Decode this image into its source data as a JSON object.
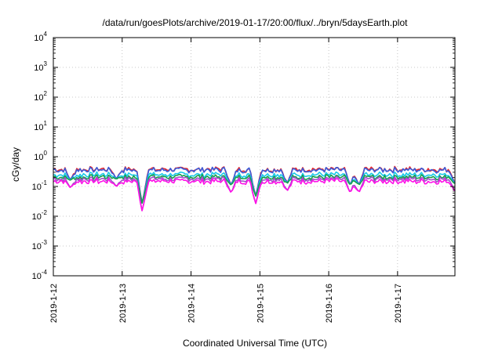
{
  "chart_data": {
    "type": "line",
    "title": "/data/run/goesPlots/archive/2019-01-17/20:00/flux/../bryn/5daysEarth.plot",
    "xlabel": "Coordinated Universal Time (UTC)",
    "ylabel": "cGy/day",
    "yscale": "log",
    "ylim": [
      0.0001,
      10000
    ],
    "xlim": [
      "2019-01-12",
      "2019-01-17 20:00"
    ],
    "x_ticks": [
      "2019-1-12",
      "2019-1-13",
      "2019-1-14",
      "2019-1-15",
      "2019-1-16",
      "2019-1-17"
    ],
    "y_ticks": [
      {
        "base": "10",
        "exp": "-4",
        "value": 0.0001
      },
      {
        "base": "10",
        "exp": "-3",
        "value": 0.001
      },
      {
        "base": "10",
        "exp": "-2",
        "value": 0.01
      },
      {
        "base": "10",
        "exp": "-1",
        "value": 0.1
      },
      {
        "base": "10",
        "exp": "0",
        "value": 1
      },
      {
        "base": "10",
        "exp": "1",
        "value": 10
      },
      {
        "base": "10",
        "exp": "2",
        "value": 100
      },
      {
        "base": "10",
        "exp": "3",
        "value": 1000
      },
      {
        "base": "10",
        "exp": "4",
        "value": 10000
      }
    ],
    "grid": true,
    "legend": "none",
    "series": [
      {
        "color": "#e4262d",
        "level": 0.38
      },
      {
        "color": "#3a5bd9",
        "level": 0.36
      },
      {
        "color": "#18c8e8",
        "level": 0.25
      },
      {
        "color": "#16a04a",
        "level": 0.21
      },
      {
        "color": "#a050c8",
        "level": 0.18
      },
      {
        "color": "#ff10e8",
        "level": 0.15
      }
    ],
    "dips": [
      {
        "date": "2019-01-12 06:00",
        "value": 0.09
      },
      {
        "date": "2019-01-12 22:00",
        "value": 0.1
      },
      {
        "date": "2019-01-13 07:00",
        "value": 0.014
      },
      {
        "date": "2019-01-14 14:00",
        "value": 0.06
      },
      {
        "date": "2019-01-14 22:30",
        "value": 0.025
      },
      {
        "date": "2019-01-15 09:30",
        "value": 0.07
      },
      {
        "date": "2019-01-16 07:30",
        "value": 0.06
      },
      {
        "date": "2019-01-16 10:30",
        "value": 0.06
      },
      {
        "date": "2019-01-17 20:00",
        "value": 0.07
      }
    ]
  }
}
